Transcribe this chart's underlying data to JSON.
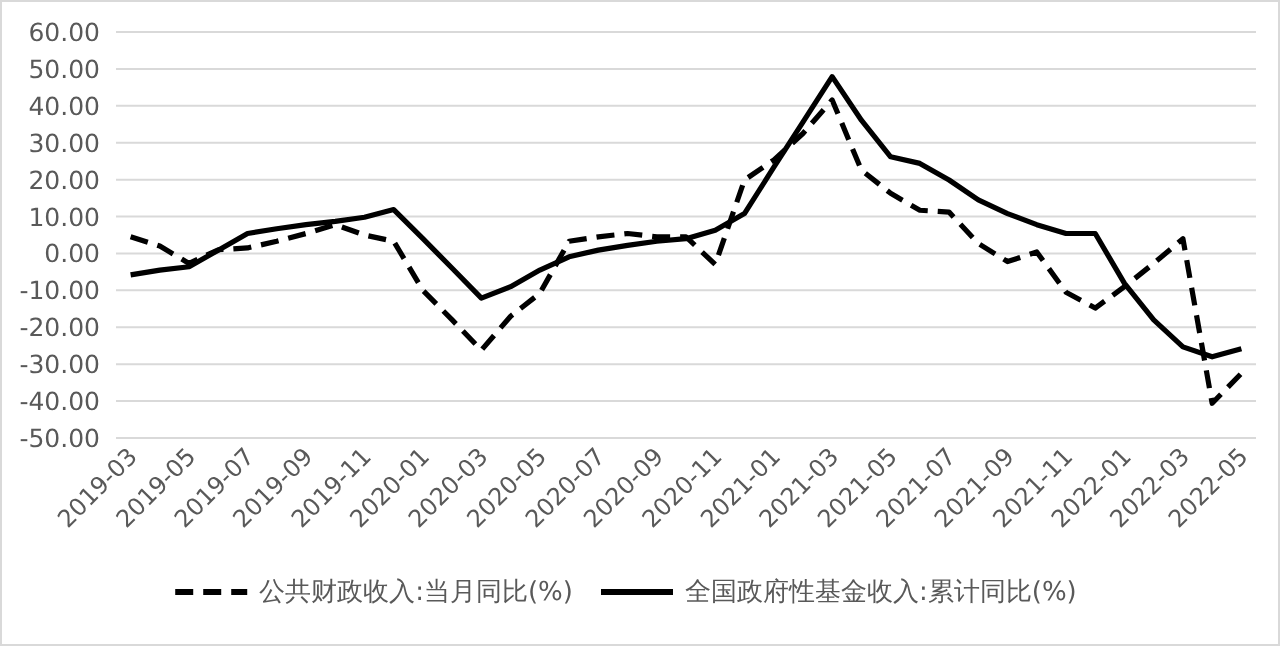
{
  "chart_data": {
    "type": "line",
    "categories": [
      "2019-03",
      null,
      "2019-05",
      null,
      "2019-07",
      null,
      "2019-09",
      null,
      "2019-11",
      null,
      "2020-01",
      null,
      "2020-03",
      null,
      "2020-05",
      null,
      "2020-07",
      null,
      "2020-09",
      null,
      "2020-11",
      null,
      "2021-01",
      null,
      "2021-03",
      null,
      "2021-05",
      null,
      "2021-07",
      null,
      "2021-09",
      null,
      "2021-11",
      null,
      "2022-01",
      null,
      "2022-03",
      null,
      "2022-05"
    ],
    "series": [
      {
        "name": "公共财政收入:当月同比(%)",
        "color": "#000000",
        "line_style": "dashed",
        "values": [
          4.5,
          2,
          -2.7,
          1,
          1.5,
          3.3,
          5.4,
          7.8,
          5,
          3.3,
          -10,
          -18,
          -26.2,
          -17,
          -10.8,
          3.3,
          4.5,
          5.4,
          4.5,
          4.5,
          -3,
          19.9,
          25.3,
          32.5,
          41.6,
          22.6,
          16.3,
          11.7,
          11.2,
          2.7,
          -2.2,
          0.4,
          -10.5,
          -14.8,
          -9,
          -2.7,
          4,
          -40.6,
          -32.5
        ]
      },
      {
        "name": "全国政府性基金收入:累计同比(%)",
        "color": "#000000",
        "line_style": "solid",
        "values": [
          -5.8,
          -4.5,
          -3.6,
          0.9,
          5.4,
          6.7,
          7.8,
          8.7,
          9.8,
          11.9,
          4,
          -4,
          -12.1,
          -9,
          -4.5,
          -0.9,
          0.9,
          2.2,
          3.3,
          4,
          6.3,
          10.8,
          23.3,
          35.6,
          47.9,
          36.1,
          26.2,
          24.4,
          19.9,
          14.5,
          10.8,
          7.8,
          5.4,
          5.4,
          -8.1,
          -18,
          -25.3,
          -28,
          -25.8
        ]
      }
    ],
    "ylim": [
      -50,
      60
    ],
    "yticks": [
      {
        "value": -50,
        "label": "-50.00"
      },
      {
        "value": -40,
        "label": "-40.00"
      },
      {
        "value": -30,
        "label": "-30.00"
      },
      {
        "value": -20,
        "label": "-20.00"
      },
      {
        "value": -10,
        "label": "-10.00"
      },
      {
        "value": 0,
        "label": "0.00"
      },
      {
        "value": 10,
        "label": "10.00"
      },
      {
        "value": 20,
        "label": "20.00"
      },
      {
        "value": 30,
        "label": "30.00"
      },
      {
        "value": 40,
        "label": "40.00"
      },
      {
        "value": 50,
        "label": "50.00"
      },
      {
        "value": 60,
        "label": "60.00"
      }
    ],
    "grid": "y",
    "legend": "bottom"
  }
}
